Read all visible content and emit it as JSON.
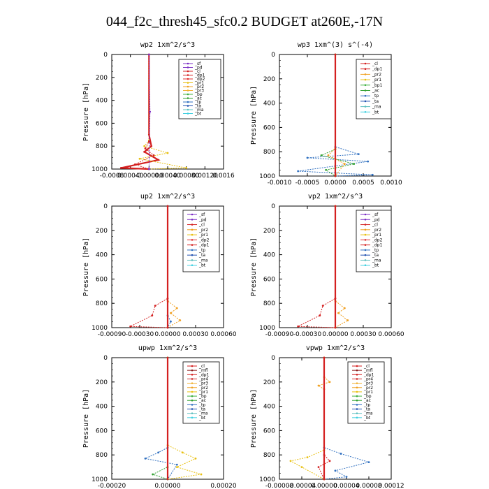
{
  "title": "044_f2c_thresh45_sfc0.2  BUDGET at260E,-17N",
  "colors": {
    "_sf": "#7b2cc4",
    "_pd": "#7b2cc4",
    "_cl": "#d42020",
    "_dp1": "#d42020",
    "_dp2": "#e03030",
    "_pr1": "#e8c010",
    "_pr2": "#f0a020",
    "_pr3": "#f0b030",
    "_pr4": "#d03030",
    "_mfl": "#8b1a1a",
    "_bp": "#40b040",
    "_bp1": "#40b040",
    "_ac": "#30a030",
    "_tp": "#3070c0",
    "_ta": "#2050b0",
    "_ma": "#60c0c0",
    "_bt": "#40d0e0"
  },
  "chart_data": [
    {
      "type": "line",
      "title": "wp2   1xm^2/s^3",
      "ylabel": "Pressure [hPa]",
      "xlim": [
        -0.0008,
        0.0016
      ],
      "ylim": [
        1000,
        0
      ],
      "xticks": [
        "-0.0008",
        "0.00040",
        "-0.00000",
        "0.00040",
        "0.00080",
        "0.00120",
        "0.0016"
      ],
      "yticks": [
        "0",
        "200",
        "400",
        "600",
        "800",
        "1000"
      ],
      "legend": [
        "_sf",
        "_pd",
        "_cl",
        "_dp1",
        "_dp2",
        "_pr1",
        "_pr2",
        "_pr3",
        "_bp",
        "_ac",
        "_tp",
        "_ta",
        "_ma",
        "_bt"
      ],
      "series": [
        {
          "name": "_cl",
          "points": [
            [
              0.0,
              0
            ],
            [
              0.0,
              700
            ],
            [
              5e-05,
              800
            ],
            [
              -0.0001,
              850
            ],
            [
              0.0002,
              920
            ],
            [
              -0.0006,
              990
            ],
            [
              0.0,
              1000
            ]
          ]
        },
        {
          "name": "_pr1",
          "points": [
            [
              0.0,
              0
            ],
            [
              0.0,
              750
            ],
            [
              -0.0001,
              800
            ],
            [
              0.0004,
              860
            ],
            [
              -0.0002,
              910
            ],
            [
              0.0008,
              990
            ],
            [
              0.0,
              1000
            ]
          ]
        },
        {
          "name": "_dp1",
          "points": [
            [
              0.0,
              0
            ],
            [
              0.0,
              760
            ],
            [
              -8e-05,
              820
            ],
            [
              0.0001,
              880
            ],
            [
              -0.0003,
              960
            ],
            [
              0.0,
              1000
            ]
          ]
        },
        {
          "name": "_sf",
          "points": [
            [
              0.0,
              0
            ],
            [
              2e-05,
              500
            ],
            [
              0.0,
              1000
            ]
          ]
        }
      ]
    },
    {
      "type": "line",
      "title": "wp3   1xm^(3) s^(-4)",
      "ylabel": "Pressure [hPa]",
      "xlim": [
        -0.0012,
        0.0012
      ],
      "ylim": [
        1000,
        0
      ],
      "xticks": [
        "-0.0010",
        "-0.0005",
        "0.0000",
        "0.0005",
        "0.0010"
      ],
      "yticks": [
        "0",
        "200",
        "400",
        "600",
        "800",
        "1000"
      ],
      "legend": [
        "_cl",
        "_dp1",
        "_pr2",
        "_pr1",
        "_bp1",
        "_ac",
        "_tp",
        "_ta",
        "_ma",
        "_bt"
      ],
      "series": [
        {
          "name": "_tp",
          "points": [
            [
              0.0,
              0
            ],
            [
              0.0,
              760
            ],
            [
              0.0005,
              820
            ],
            [
              -0.0006,
              850
            ],
            [
              0.0007,
              880
            ],
            [
              -0.0008,
              960
            ],
            [
              0.0008,
              990
            ],
            [
              0.0,
              1000
            ]
          ]
        },
        {
          "name": "_ac",
          "points": [
            [
              0.0,
              0
            ],
            [
              0.0,
              780
            ],
            [
              -0.0003,
              830
            ],
            [
              0.0004,
              900
            ],
            [
              -0.0002,
              950
            ],
            [
              0.0,
              1000
            ]
          ]
        },
        {
          "name": "_pr2",
          "points": [
            [
              0.0,
              0
            ],
            [
              0.0,
              770
            ],
            [
              -0.00015,
              830
            ],
            [
              0.0002,
              900
            ],
            [
              0.0,
              1000
            ]
          ]
        },
        {
          "name": "_cl",
          "points": [
            [
              0.0,
              0
            ],
            [
              0.0,
              1000
            ]
          ]
        }
      ]
    },
    {
      "type": "line",
      "title": "up2   1xm^2/s^3",
      "ylabel": "Pressure [hPa]",
      "xlim": [
        -0.0009,
        0.0009
      ],
      "ylim": [
        1000,
        0
      ],
      "xticks": [
        "-0.00090",
        "-0.00030",
        "0.00000",
        "0.00030",
        "0.00060"
      ],
      "yticks": [
        "0",
        "200",
        "400",
        "600",
        "800",
        "1000"
      ],
      "legend": [
        "_sf",
        "_pd",
        "_cl",
        "_pr2",
        "_pr1",
        "_dp2",
        "_dp1",
        "_tp",
        "_ta",
        "_ma",
        "_bt"
      ],
      "series": [
        {
          "name": "_dp1",
          "points": [
            [
              0.0,
              0
            ],
            [
              0.0,
              760
            ],
            [
              -0.0002,
              820
            ],
            [
              -0.00025,
              900
            ],
            [
              -0.0006,
              990
            ],
            [
              0.0,
              1000
            ]
          ]
        },
        {
          "name": "_pr2",
          "points": [
            [
              0.0,
              0
            ],
            [
              0.0,
              780
            ],
            [
              0.00015,
              840
            ],
            [
              5e-05,
              880
            ],
            [
              0.0002,
              940
            ],
            [
              0.0,
              1000
            ]
          ]
        },
        {
          "name": "_tp",
          "points": [
            [
              0.0,
              0
            ],
            [
              0.0,
              900
            ],
            [
              5e-05,
              950
            ],
            [
              0.0,
              1000
            ]
          ]
        },
        {
          "name": "_cl",
          "points": [
            [
              0.0,
              0
            ],
            [
              0.0,
              1000
            ]
          ]
        }
      ]
    },
    {
      "type": "line",
      "title": "vp2   1xm^2/s^3",
      "ylabel": "Pressure [hPa]",
      "xlim": [
        -0.0009,
        0.0009
      ],
      "ylim": [
        1000,
        0
      ],
      "xticks": [
        "-0.00090",
        "-0.00030",
        "0.00000",
        "0.00030",
        "0.00060"
      ],
      "yticks": [
        "0",
        "200",
        "400",
        "600",
        "800",
        "1000"
      ],
      "legend": [
        "_sf",
        "_pd",
        "_cl",
        "_pr2",
        "_pr1",
        "_dp2",
        "_dp1",
        "_tp",
        "_ta",
        "_ma",
        "_bt"
      ],
      "series": [
        {
          "name": "_dp1",
          "points": [
            [
              0.0,
              0
            ],
            [
              0.0,
              760
            ],
            [
              -0.0002,
              820
            ],
            [
              -0.00025,
              900
            ],
            [
              -0.0006,
              990
            ],
            [
              0.0,
              1000
            ]
          ]
        },
        {
          "name": "_pr2",
          "points": [
            [
              0.0,
              0
            ],
            [
              0.0,
              780
            ],
            [
              0.00015,
              840
            ],
            [
              5e-05,
              880
            ],
            [
              0.0002,
              940
            ],
            [
              0.0,
              1000
            ]
          ]
        },
        {
          "name": "_cl",
          "points": [
            [
              0.0,
              0
            ],
            [
              0.0,
              1000
            ]
          ]
        }
      ]
    },
    {
      "type": "line",
      "title": "upwp   1xm^2/s^3",
      "ylabel": "Pressure [hPa]",
      "xlim": [
        -0.0003,
        0.0003
      ],
      "ylim": [
        1000,
        0
      ],
      "xticks": [
        "-0.00020",
        "0.00000",
        "0.00020"
      ],
      "yticks": [
        "0",
        "200",
        "400",
        "600",
        "800",
        "1000"
      ],
      "legend": [
        "_cl",
        "_mfl",
        "_dp1",
        "_pr4",
        "_pr3",
        "_pr2",
        "_pr1",
        "_bp",
        "_ac",
        "_tp",
        "_ta",
        "_ma",
        "_bt"
      ],
      "series": [
        {
          "name": "_tp",
          "points": [
            [
              0.0,
              0
            ],
            [
              0.0,
              740
            ],
            [
              -5e-05,
              780
            ],
            [
              -0.00012,
              830
            ],
            [
              5e-05,
              880
            ],
            [
              0.0,
              1000
            ]
          ]
        },
        {
          "name": "_pr1",
          "points": [
            [
              0.0,
              0
            ],
            [
              0.0,
              720
            ],
            [
              8e-05,
              780
            ],
            [
              0.00015,
              830
            ],
            [
              5e-05,
              900
            ],
            [
              0.00018,
              960
            ],
            [
              0.0,
              1000
            ]
          ]
        },
        {
          "name": "_ac",
          "points": [
            [
              0.0,
              0
            ],
            [
              0.0,
              900
            ],
            [
              -8e-05,
              960
            ],
            [
              0.0,
              1000
            ]
          ]
        },
        {
          "name": "_cl",
          "points": [
            [
              0.0,
              0
            ],
            [
              0.0,
              1000
            ]
          ]
        }
      ]
    },
    {
      "type": "line",
      "title": "vpwp   1xm^2/s^3",
      "ylabel": "Pressure [hPa]",
      "xlim": [
        -8e-05,
        0.00012
      ],
      "ylim": [
        1000,
        0
      ],
      "xticks": [
        "-0.00008",
        "-0.00004",
        "0.00000",
        "0.00004",
        "0.00008",
        "0.00012"
      ],
      "yticks": [
        "0",
        "200",
        "400",
        "600",
        "800",
        "1000"
      ],
      "legend": [
        "_cl",
        "_mfl",
        "_dp1",
        "_pr4",
        "_pr3",
        "_pr2",
        "_pr1",
        "_bp",
        "_ac",
        "_tp",
        "_ta",
        "_ma",
        "_bt"
      ],
      "series": [
        {
          "name": "_tp",
          "points": [
            [
              0.0,
              0
            ],
            [
              0.0,
              740
            ],
            [
              3e-05,
              790
            ],
            [
              8e-05,
              860
            ],
            [
              2e-05,
              930
            ],
            [
              4e-05,
              980
            ],
            [
              0.0,
              1000
            ]
          ]
        },
        {
          "name": "_pr1",
          "points": [
            [
              0.0,
              0
            ],
            [
              0.0,
              760
            ],
            [
              -3e-05,
              820
            ],
            [
              -6e-05,
              850
            ],
            [
              -4e-05,
              900
            ],
            [
              0.0,
              1000
            ]
          ]
        },
        {
          "name": "_dp1",
          "points": [
            [
              0.0,
              0
            ],
            [
              0.0,
              800
            ],
            [
              1e-05,
              850
            ],
            [
              -1e-05,
              900
            ],
            [
              0.0,
              1000
            ]
          ]
        },
        {
          "name": "_pr2",
          "points": [
            [
              0.0,
              0
            ],
            [
              0.0,
              160
            ],
            [
              1e-05,
              200
            ],
            [
              -1e-05,
              230
            ],
            [
              0.0,
              260
            ],
            [
              0.0,
              1000
            ]
          ]
        },
        {
          "name": "_cl",
          "points": [
            [
              0.0,
              0
            ],
            [
              0.0,
              1000
            ]
          ]
        }
      ]
    }
  ]
}
